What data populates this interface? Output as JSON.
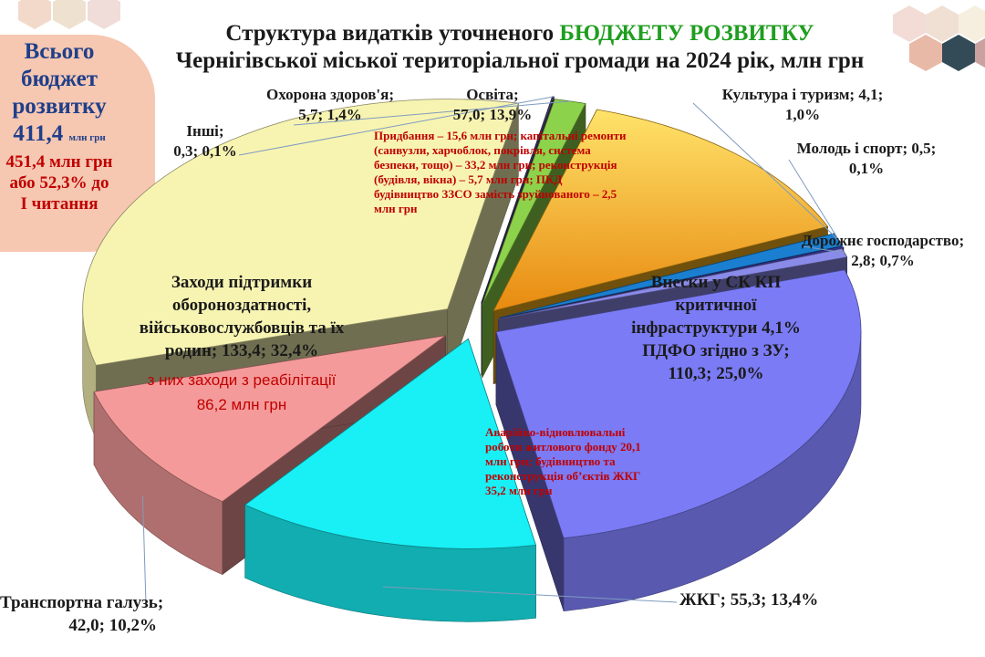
{
  "title": {
    "line1_prefix": "Структура видатків уточненого ",
    "line1_accent": "БЮДЖЕТУ РОЗВИТКУ",
    "line2": "Чернігівської міської територіальної громади на 2024 рік, млн грн"
  },
  "total": {
    "line1": "Всього",
    "line2": "бюджет",
    "line3": "розвитку",
    "value": "411,4",
    "unit": "млн грн",
    "delta1": "451,4 млн грн",
    "delta2": "або 52,3% до",
    "delta3": "І читання"
  },
  "colors": {
    "accent_green": "#1f9e1f",
    "total_box": "#f6c7b1",
    "note_red": "#c00000"
  },
  "chart_data": {
    "type": "pie",
    "title": "Структура видатків уточненого БЮДЖЕТУ РОЗВИТКУ Чернігівської міської територіальної громади на 2024 рік, млн грн",
    "unit": "млн грн",
    "series": [
      {
        "name": "",
        "slices": [
          {
            "key": "vnesky",
            "label_lines": [
              "Внески у СК КП",
              "критичної",
              "інфраструктури 4,1%",
              "ПДФО згідно з ЗУ;",
              "110,3; 25,0%"
            ],
            "value": 110.3,
            "percent": 25.0,
            "color": "#7b7bf5"
          },
          {
            "key": "zhkg",
            "label_lines": [
              "ЖКГ; 55,3; 13,4%"
            ],
            "value": 55.3,
            "percent": 13.4,
            "color": "#18f0f5"
          },
          {
            "key": "transport",
            "label_lines": [
              "Транспортна галузь;",
              "42,0; 10,2%"
            ],
            "value": 42.0,
            "percent": 10.2,
            "color": "#f59a9a"
          },
          {
            "key": "oborona",
            "label_lines": [
              "Заходи підтримки",
              "обороноздатності,",
              "військовослужбовців та їх",
              "родин; 133,4; 32,4%"
            ],
            "value": 133.4,
            "percent": 32.4,
            "color": "#f7f4b2"
          },
          {
            "key": "inshi",
            "label_lines": [
              "Інші;",
              "0,3; 0,1%"
            ],
            "value": 0.3,
            "percent": 0.1,
            "color": "#4a3c6e"
          },
          {
            "key": "zdorovya",
            "label_lines": [
              "Охорона здоров'я;",
              "5,7; 1,4%"
            ],
            "value": 5.7,
            "percent": 1.4,
            "color": "#8cd24a"
          },
          {
            "key": "osvita",
            "label_lines": [
              "Освіта;",
              "57,0; 13,9%"
            ],
            "value": 57.0,
            "percent": 13.9,
            "color": "#f7b21a"
          },
          {
            "key": "kultura",
            "label_lines": [
              "Культура і туризм; 4,1;",
              "1,0%"
            ],
            "value": 4.1,
            "percent": 1.0,
            "color": "#1a7fd0"
          },
          {
            "key": "molod",
            "label_lines": [
              "Молодь і спорт; 0,5;",
              "0,1%"
            ],
            "value": 0.5,
            "percent": 0.1,
            "color": "#3a3aa0"
          },
          {
            "key": "dorozhne",
            "label_lines": [
              "Дорожнє господарство;",
              "2,8; 0,7%"
            ],
            "value": 2.8,
            "percent": 0.7,
            "color": "#8a8ae8"
          }
        ]
      }
    ],
    "annotations": {
      "osvita": "Придбання – 15,6 млн грн; капітальні ремонти (санвузли, харчоблок, покрівля, система безпеки, тощо) – 33,2 млн грн; реконструкція (будівля, вікна) – 5,7 млн грн; ПКД будівництво ЗЗСО замість зруйнованого – 2,5 млн грн",
      "oborona_line1": "з них заходи з реабілітації",
      "oborona_line2": "86,2 млн грн",
      "zhkg": "Аварійно-відновлювальні роботи житлового фонду 20,1 млн грн; будівництво та реконструкція об’єктів ЖКГ 35,2 млн грн"
    },
    "legend": "none",
    "grid": false
  }
}
